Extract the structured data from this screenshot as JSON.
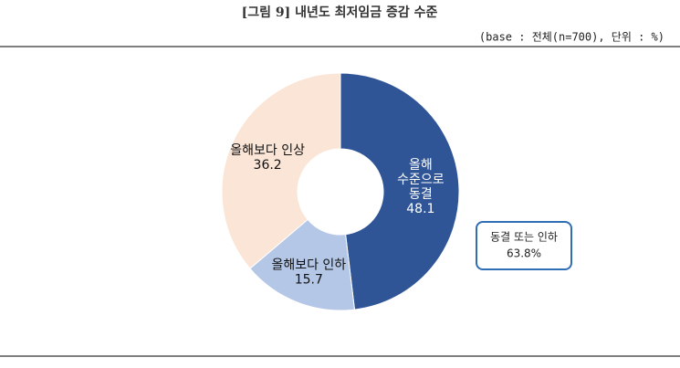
{
  "chart_data": {
    "type": "donut",
    "title": "[그림 9] 내년도 최저임금 증감 수준",
    "subtitle": "(base : 전체(n=700), 단위 : %)",
    "categories": [
      "올해 수준으로 동결",
      "올해보다 인하",
      "올해보다 인상"
    ],
    "values": [
      48.1,
      15.7,
      36.2
    ],
    "colors": [
      "#2f5597",
      "#b4c7e7",
      "#fbe5d6"
    ],
    "annotation": [
      "동결 또는 인하",
      "63.8%"
    ]
  }
}
